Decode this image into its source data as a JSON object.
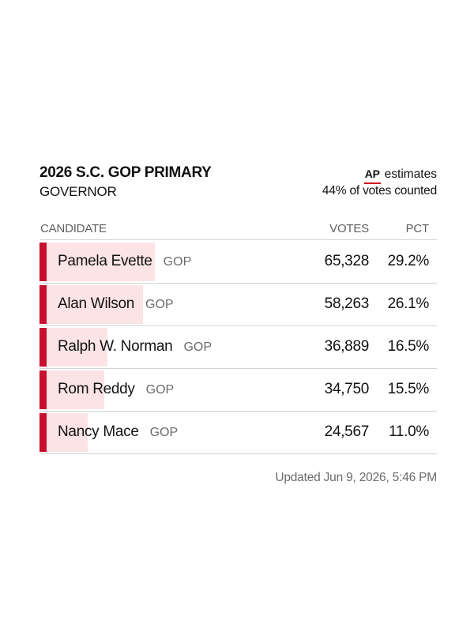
{
  "header": {
    "title": "2026 S.C. GOP PRIMARY",
    "subtitle": "GOVERNOR",
    "source_logo": "AP",
    "source_text": "estimates",
    "counted_text": "44% of votes counted"
  },
  "columns": {
    "candidate": "CANDIDATE",
    "votes": "VOTES",
    "pct": "PCT"
  },
  "colors": {
    "stripe": "#c8102e",
    "bar": "#fbe3e6",
    "ap_underline": "#d0021b"
  },
  "chart_data": {
    "type": "table",
    "rows": [
      {
        "candidate": "Pamela Evette",
        "party": "GOP",
        "votes": "65,328",
        "pct": "29.2%",
        "pct_value": 29.2
      },
      {
        "candidate": "Alan Wilson",
        "party": "GOP",
        "votes": "58,263",
        "pct": "26.1%",
        "pct_value": 26.1
      },
      {
        "candidate": "Ralph W. Norman",
        "party": "GOP",
        "votes": "36,889",
        "pct": "16.5%",
        "pct_value": 16.5
      },
      {
        "candidate": "Rom Reddy",
        "party": "GOP",
        "votes": "34,750",
        "pct": "15.5%",
        "pct_value": 15.5
      },
      {
        "candidate": "Nancy Mace",
        "party": "GOP",
        "votes": "24,567",
        "pct": "11.0%",
        "pct_value": 11.0
      }
    ]
  },
  "footer": {
    "updated": "Updated  Jun 9, 2026, 5:46 PM"
  }
}
